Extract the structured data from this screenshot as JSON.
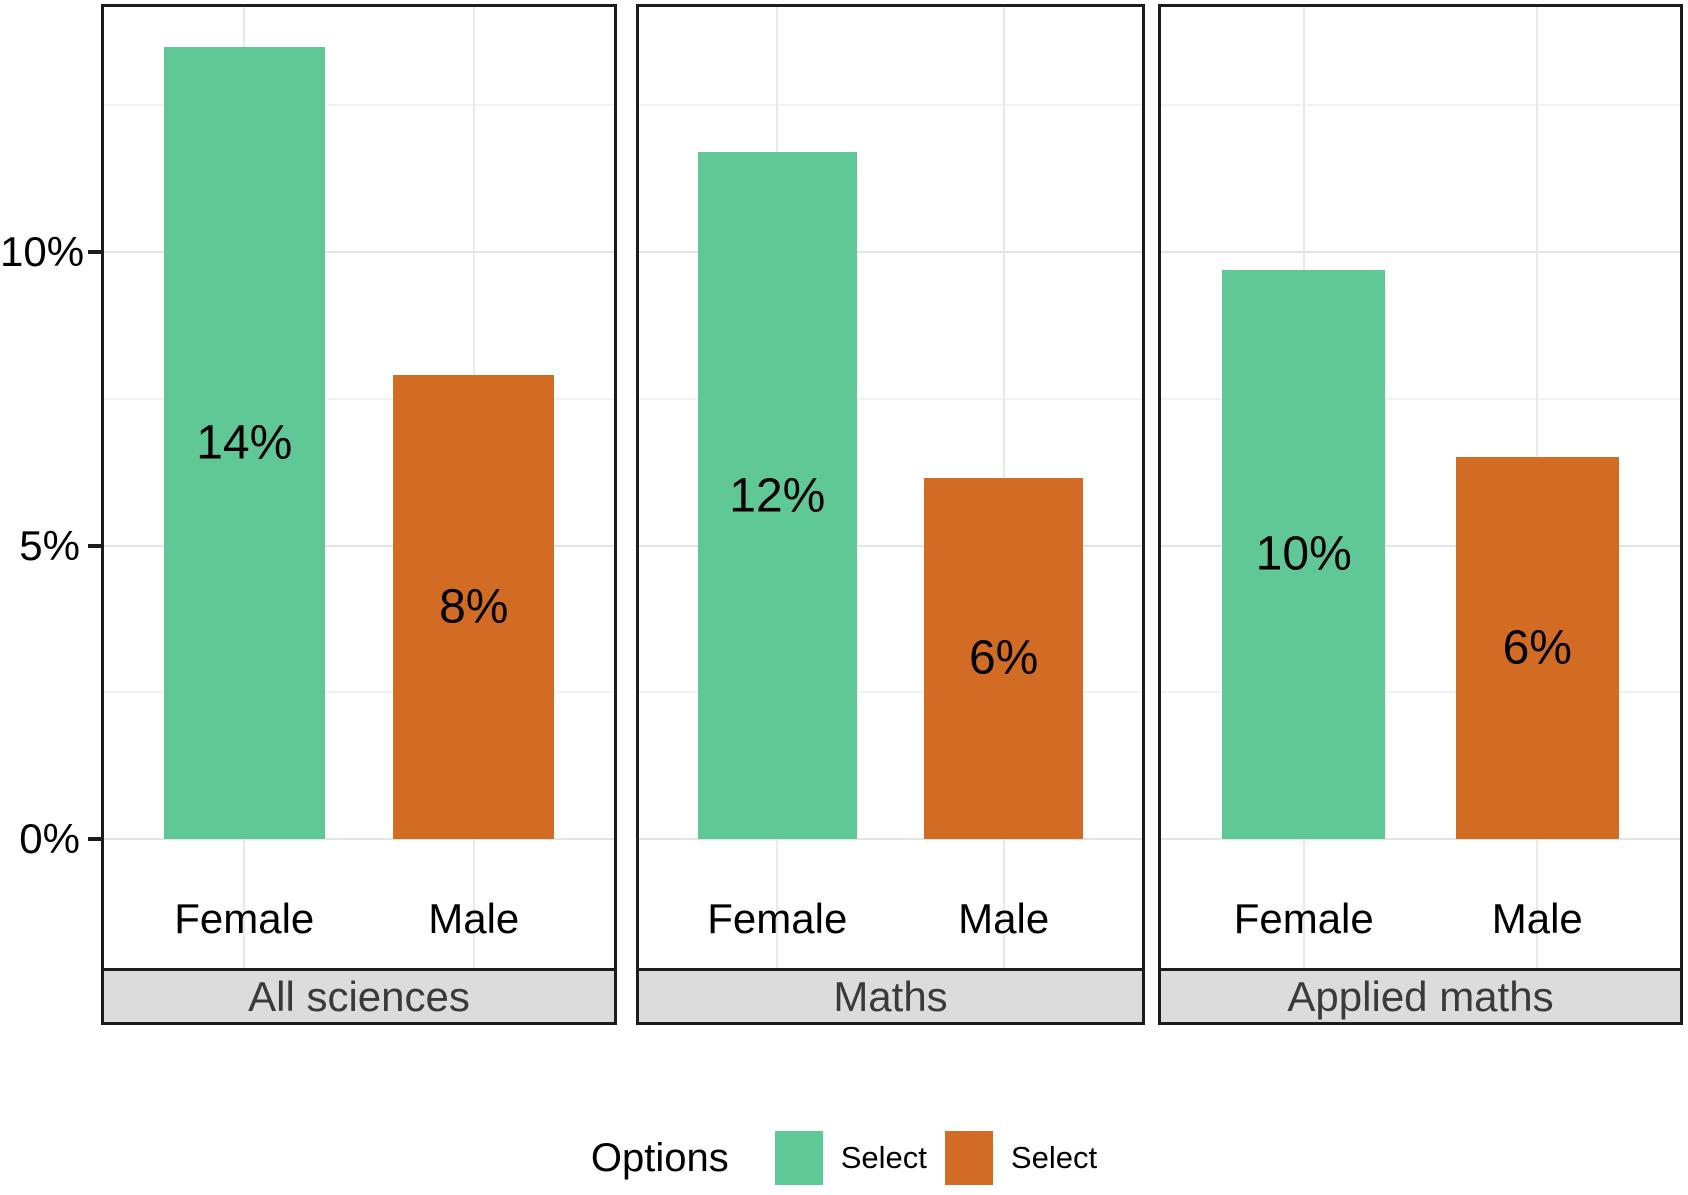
{
  "chart_data": {
    "type": "bar",
    "faceted": true,
    "categories": [
      "Female",
      "Male"
    ],
    "facets": [
      {
        "label": "All sciences",
        "bars": [
          {
            "category": "Female",
            "label": "14%",
            "value": 14,
            "plotted_pct": 13.5
          },
          {
            "category": "Male",
            "label": "8%",
            "value": 8,
            "plotted_pct": 7.9
          }
        ]
      },
      {
        "label": "Maths",
        "bars": [
          {
            "category": "Female",
            "label": "12%",
            "value": 12,
            "plotted_pct": 11.7
          },
          {
            "category": "Male",
            "label": "6%",
            "value": 6,
            "plotted_pct": 6.15
          }
        ]
      },
      {
        "label": "Applied maths",
        "bars": [
          {
            "category": "Female",
            "label": "10%",
            "value": 10,
            "plotted_pct": 9.7
          },
          {
            "category": "Male",
            "label": "6%",
            "value": 6,
            "plotted_pct": 6.5
          }
        ]
      }
    ],
    "y_axis": {
      "tick_labels": [
        "0%",
        "5%",
        "10%"
      ],
      "tick_values": [
        0,
        5,
        10
      ],
      "minor_gridlines": [
        2.5,
        7.5,
        12.5
      ],
      "range": [
        0,
        14.2
      ]
    },
    "grid": true,
    "legend": {
      "title": "Options",
      "position": "bottom",
      "entries": [
        {
          "label": "Select",
          "color": "#60c896"
        },
        {
          "label": "Select",
          "color": "#d26b24"
        }
      ]
    },
    "colors": {
      "female_bar": "#60c896",
      "male_bar": "#d26b24",
      "strip_background": "#dcdcdc",
      "strip_text": "#3a3a3a",
      "panel_border": "#1c1c1c"
    }
  }
}
